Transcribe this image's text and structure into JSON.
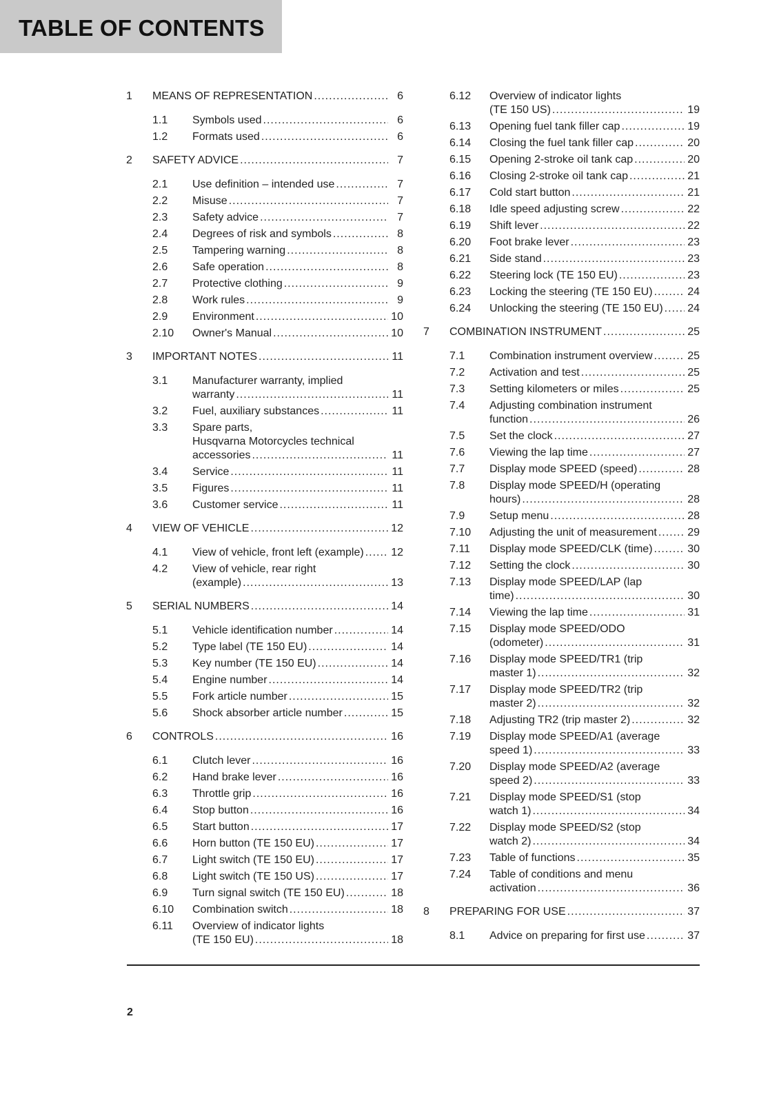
{
  "header": {
    "title": "TABLE OF CONTENTS",
    "color": "#c9c9c9"
  },
  "page_number": "2",
  "columns": [
    [
      {
        "level": "chapter",
        "num": "1",
        "title": [
          "MEANS OF REPRESENTATION"
        ],
        "page": "6"
      },
      {
        "level": "sub",
        "num": "1.1",
        "title": [
          "Symbols used"
        ],
        "page": "6"
      },
      {
        "level": "sub",
        "num": "1.2",
        "title": [
          "Formats used"
        ],
        "page": "6"
      },
      {
        "level": "chapter",
        "num": "2",
        "title": [
          "SAFETY ADVICE"
        ],
        "page": "7"
      },
      {
        "level": "sub",
        "num": "2.1",
        "title": [
          "Use definition – intended use"
        ],
        "page": "7"
      },
      {
        "level": "sub",
        "num": "2.2",
        "title": [
          "Misuse"
        ],
        "page": "7"
      },
      {
        "level": "sub",
        "num": "2.3",
        "title": [
          "Safety advice"
        ],
        "page": "7"
      },
      {
        "level": "sub",
        "num": "2.4",
        "title": [
          "Degrees of risk and symbols"
        ],
        "page": "8"
      },
      {
        "level": "sub",
        "num": "2.5",
        "title": [
          "Tampering warning"
        ],
        "page": "8"
      },
      {
        "level": "sub",
        "num": "2.6",
        "title": [
          "Safe operation"
        ],
        "page": "8"
      },
      {
        "level": "sub",
        "num": "2.7",
        "title": [
          "Protective clothing"
        ],
        "page": "9"
      },
      {
        "level": "sub",
        "num": "2.8",
        "title": [
          "Work rules"
        ],
        "page": "9"
      },
      {
        "level": "sub",
        "num": "2.9",
        "title": [
          "Environment"
        ],
        "page": "10"
      },
      {
        "level": "sub",
        "num": "2.10",
        "title": [
          "Owner's Manual"
        ],
        "page": "10"
      },
      {
        "level": "chapter",
        "num": "3",
        "title": [
          "IMPORTANT NOTES"
        ],
        "page": "11"
      },
      {
        "level": "sub",
        "num": "3.1",
        "title": [
          "Manufacturer warranty, implied",
          "warranty"
        ],
        "page": "11"
      },
      {
        "level": "sub",
        "num": "3.2",
        "title": [
          "Fuel, auxiliary substances"
        ],
        "page": "11"
      },
      {
        "level": "sub",
        "num": "3.3",
        "title": [
          "Spare parts,",
          "Husqvarna Motorcycles technical",
          "accessories"
        ],
        "page": "11"
      },
      {
        "level": "sub",
        "num": "3.4",
        "title": [
          "Service"
        ],
        "page": "11"
      },
      {
        "level": "sub",
        "num": "3.5",
        "title": [
          "Figures"
        ],
        "page": "11"
      },
      {
        "level": "sub",
        "num": "3.6",
        "title": [
          "Customer service"
        ],
        "page": "11"
      },
      {
        "level": "chapter",
        "num": "4",
        "title": [
          "VIEW OF VEHICLE"
        ],
        "page": "12"
      },
      {
        "level": "sub",
        "num": "4.1",
        "title": [
          "View of vehicle, front left (example)"
        ],
        "page": "12"
      },
      {
        "level": "sub",
        "num": "4.2",
        "title": [
          "View of vehicle, rear right",
          "(example)"
        ],
        "page": "13"
      },
      {
        "level": "chapter",
        "num": "5",
        "title": [
          "SERIAL NUMBERS"
        ],
        "page": "14"
      },
      {
        "level": "sub",
        "num": "5.1",
        "title": [
          "Vehicle identification number"
        ],
        "page": "14"
      },
      {
        "level": "sub",
        "num": "5.2",
        "title": [
          "Type label (TE 150 EU)"
        ],
        "page": "14"
      },
      {
        "level": "sub",
        "num": "5.3",
        "title": [
          "Key number (TE 150 EU)"
        ],
        "page": "14"
      },
      {
        "level": "sub",
        "num": "5.4",
        "title": [
          "Engine number"
        ],
        "page": "14"
      },
      {
        "level": "sub",
        "num": "5.5",
        "title": [
          "Fork article number"
        ],
        "page": "15"
      },
      {
        "level": "sub",
        "num": "5.6",
        "title": [
          "Shock absorber article number"
        ],
        "page": "15"
      },
      {
        "level": "chapter",
        "num": "6",
        "title": [
          "CONTROLS"
        ],
        "page": "16"
      },
      {
        "level": "sub",
        "num": "6.1",
        "title": [
          "Clutch lever"
        ],
        "page": "16"
      },
      {
        "level": "sub",
        "num": "6.2",
        "title": [
          "Hand brake lever"
        ],
        "page": "16"
      },
      {
        "level": "sub",
        "num": "6.3",
        "title": [
          "Throttle grip"
        ],
        "page": "16"
      },
      {
        "level": "sub",
        "num": "6.4",
        "title": [
          "Stop button"
        ],
        "page": "16"
      },
      {
        "level": "sub",
        "num": "6.5",
        "title": [
          "Start button"
        ],
        "page": "17"
      },
      {
        "level": "sub",
        "num": "6.6",
        "title": [
          "Horn button (TE 150 EU)"
        ],
        "page": "17"
      },
      {
        "level": "sub",
        "num": "6.7",
        "title": [
          "Light switch (TE 150 EU)"
        ],
        "page": "17"
      },
      {
        "level": "sub",
        "num": "6.8",
        "title": [
          "Light switch (TE 150 US)"
        ],
        "page": "17"
      },
      {
        "level": "sub",
        "num": "6.9",
        "title": [
          "Turn signal switch (TE 150 EU)"
        ],
        "page": "18"
      },
      {
        "level": "sub",
        "num": "6.10",
        "title": [
          "Combination switch"
        ],
        "page": "18"
      },
      {
        "level": "sub",
        "num": "6.11",
        "title": [
          "Overview of indicator lights",
          "(TE 150 EU)"
        ],
        "page": "18"
      }
    ],
    [
      {
        "level": "sub",
        "num": "6.12",
        "title": [
          "Overview of indicator lights",
          "(TE 150 US)"
        ],
        "page": "19"
      },
      {
        "level": "sub",
        "num": "6.13",
        "title": [
          "Opening fuel tank filler cap"
        ],
        "page": "19"
      },
      {
        "level": "sub",
        "num": "6.14",
        "title": [
          "Closing the fuel tank filler cap"
        ],
        "page": "20"
      },
      {
        "level": "sub",
        "num": "6.15",
        "title": [
          "Opening 2-stroke oil tank cap"
        ],
        "page": "20"
      },
      {
        "level": "sub",
        "num": "6.16",
        "title": [
          "Closing 2-stroke oil tank cap"
        ],
        "page": "21"
      },
      {
        "level": "sub",
        "num": "6.17",
        "title": [
          "Cold start button"
        ],
        "page": "21"
      },
      {
        "level": "sub",
        "num": "6.18",
        "title": [
          "Idle speed adjusting screw"
        ],
        "page": "22"
      },
      {
        "level": "sub",
        "num": "6.19",
        "title": [
          "Shift lever"
        ],
        "page": "22"
      },
      {
        "level": "sub",
        "num": "6.20",
        "title": [
          "Foot brake lever"
        ],
        "page": "23"
      },
      {
        "level": "sub",
        "num": "6.21",
        "title": [
          "Side stand"
        ],
        "page": "23"
      },
      {
        "level": "sub",
        "num": "6.22",
        "title": [
          "Steering lock (TE 150 EU)"
        ],
        "page": "23"
      },
      {
        "level": "sub",
        "num": "6.23",
        "title": [
          "Locking the steering (TE 150 EU)"
        ],
        "page": "24"
      },
      {
        "level": "sub",
        "num": "6.24",
        "title": [
          "Unlocking the steering (TE 150 EU)"
        ],
        "page": "24"
      },
      {
        "level": "chapter",
        "num": "7",
        "title": [
          "COMBINATION INSTRUMENT"
        ],
        "page": "25"
      },
      {
        "level": "sub",
        "num": "7.1",
        "title": [
          "Combination instrument overview"
        ],
        "page": "25"
      },
      {
        "level": "sub",
        "num": "7.2",
        "title": [
          "Activation and test"
        ],
        "page": "25"
      },
      {
        "level": "sub",
        "num": "7.3",
        "title": [
          "Setting kilometers or miles"
        ],
        "page": "25"
      },
      {
        "level": "sub",
        "num": "7.4",
        "title": [
          "Adjusting combination instrument",
          "function"
        ],
        "page": "26"
      },
      {
        "level": "sub",
        "num": "7.5",
        "title": [
          "Set the clock"
        ],
        "page": "27"
      },
      {
        "level": "sub",
        "num": "7.6",
        "title": [
          "Viewing the lap time"
        ],
        "page": "27"
      },
      {
        "level": "sub",
        "num": "7.7",
        "title": [
          "Display mode SPEED (speed)"
        ],
        "page": "28"
      },
      {
        "level": "sub",
        "num": "7.8",
        "title": [
          "Display mode SPEED/H (operating",
          "hours)"
        ],
        "page": "28"
      },
      {
        "level": "sub",
        "num": "7.9",
        "title": [
          "Setup menu"
        ],
        "page": "28"
      },
      {
        "level": "sub",
        "num": "7.10",
        "title": [
          "Adjusting the unit of measurement"
        ],
        "page": "29"
      },
      {
        "level": "sub",
        "num": "7.11",
        "title": [
          "Display mode SPEED/CLK (time)"
        ],
        "page": "30"
      },
      {
        "level": "sub",
        "num": "7.12",
        "title": [
          "Setting the clock"
        ],
        "page": "30"
      },
      {
        "level": "sub",
        "num": "7.13",
        "title": [
          "Display mode SPEED/LAP (lap",
          "time)"
        ],
        "page": "30"
      },
      {
        "level": "sub",
        "num": "7.14",
        "title": [
          "Viewing the lap time"
        ],
        "page": "31"
      },
      {
        "level": "sub",
        "num": "7.15",
        "title": [
          "Display mode SPEED/ODO",
          "(odometer)"
        ],
        "page": "31"
      },
      {
        "level": "sub",
        "num": "7.16",
        "title": [
          "Display mode SPEED/TR1 (trip",
          "master 1)"
        ],
        "page": "32"
      },
      {
        "level": "sub",
        "num": "7.17",
        "title": [
          "Display mode SPEED/TR2 (trip",
          "master 2)"
        ],
        "page": "32"
      },
      {
        "level": "sub",
        "num": "7.18",
        "title": [
          "Adjusting TR2 (trip master 2)"
        ],
        "page": "32"
      },
      {
        "level": "sub",
        "num": "7.19",
        "title": [
          "Display mode SPEED/A1 (average",
          "speed 1)"
        ],
        "page": "33"
      },
      {
        "level": "sub",
        "num": "7.20",
        "title": [
          "Display mode SPEED/A2 (average",
          "speed 2)"
        ],
        "page": "33"
      },
      {
        "level": "sub",
        "num": "7.21",
        "title": [
          "Display mode SPEED/S1 (stop",
          "watch 1)"
        ],
        "page": "34"
      },
      {
        "level": "sub",
        "num": "7.22",
        "title": [
          "Display mode SPEED/S2 (stop",
          "watch 2)"
        ],
        "page": "34"
      },
      {
        "level": "sub",
        "num": "7.23",
        "title": [
          "Table of functions"
        ],
        "page": "35"
      },
      {
        "level": "sub",
        "num": "7.24",
        "title": [
          "Table of conditions and menu",
          "activation"
        ],
        "page": "36"
      },
      {
        "level": "chapter",
        "num": "8",
        "title": [
          "PREPARING FOR USE"
        ],
        "page": "37"
      },
      {
        "level": "sub",
        "num": "8.1",
        "title": [
          "Advice on preparing for first use"
        ],
        "page": "37"
      }
    ]
  ]
}
